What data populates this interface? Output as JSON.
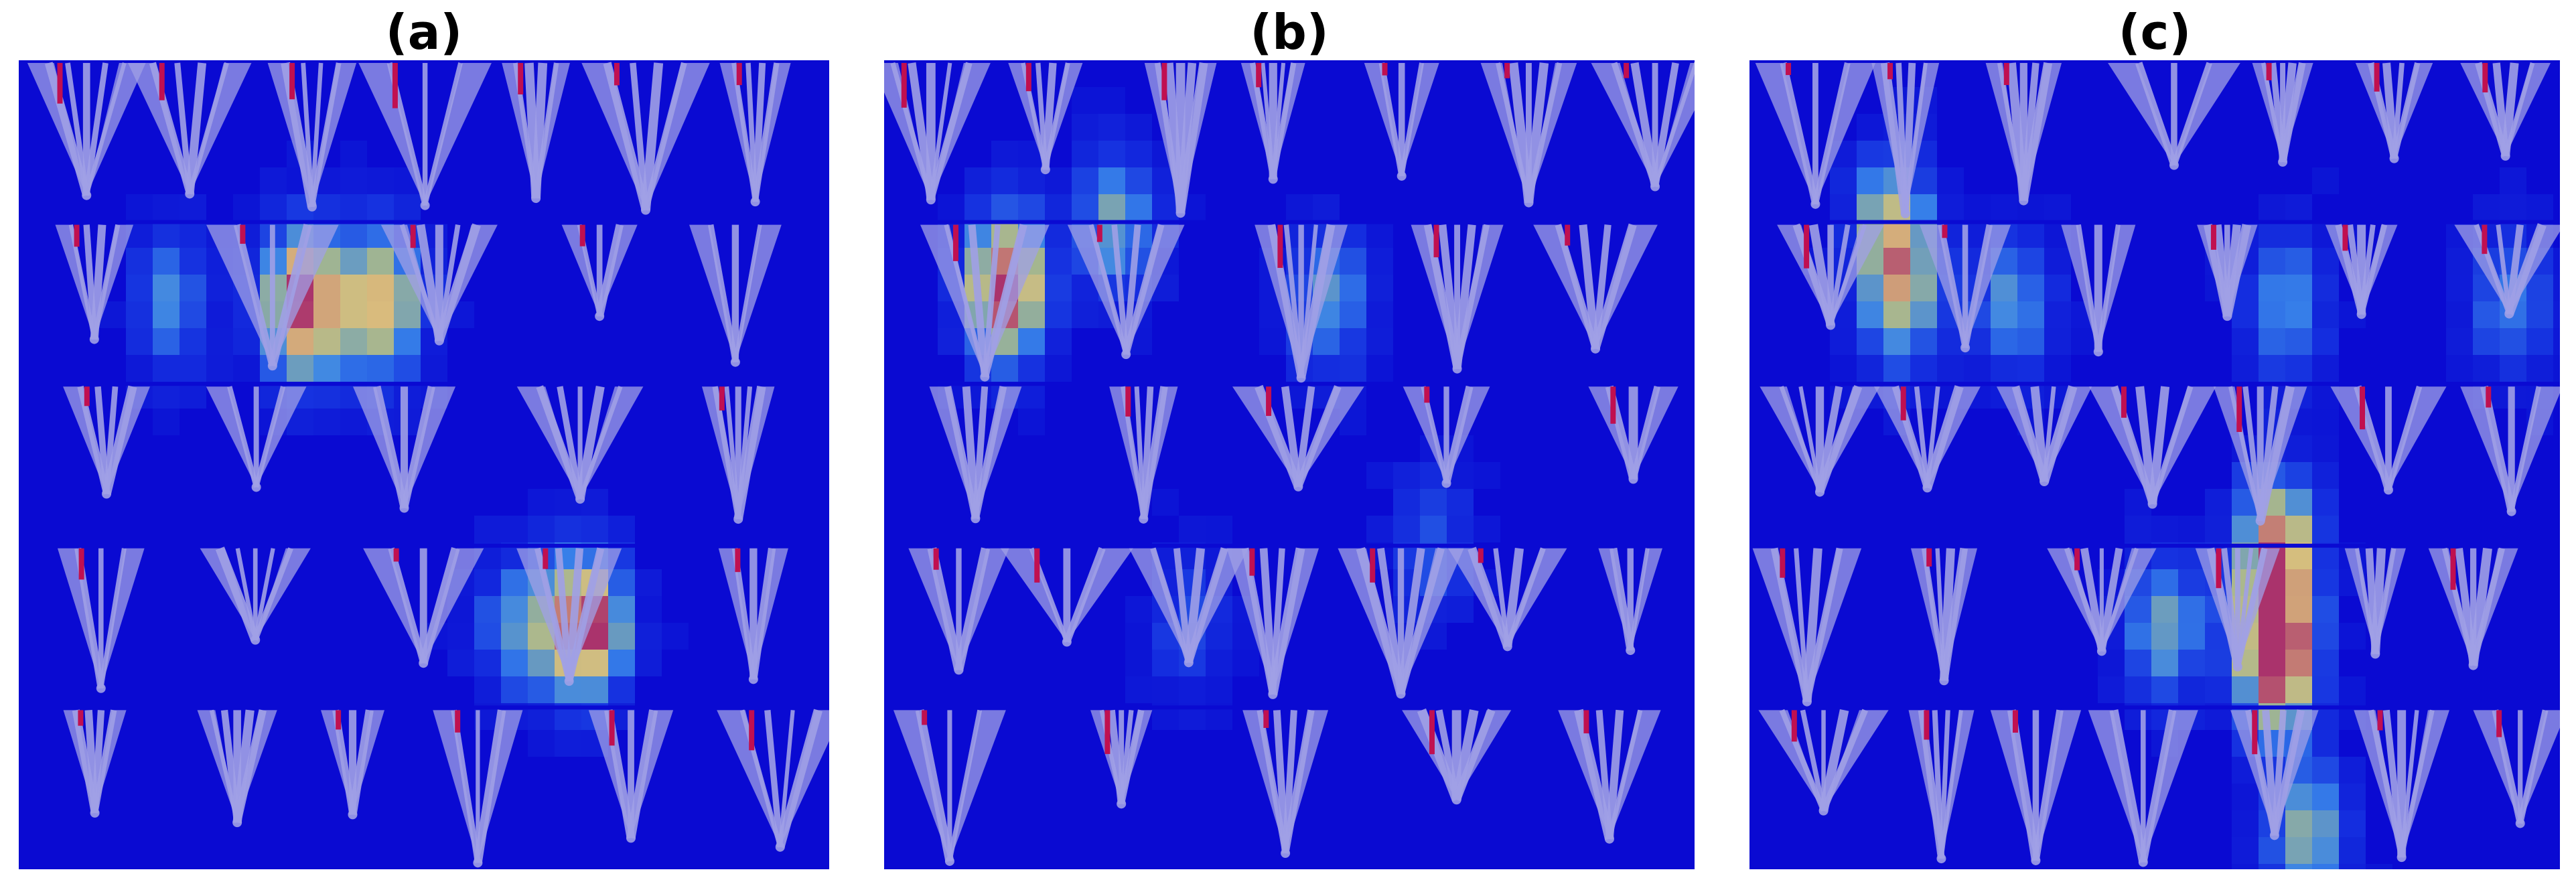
{
  "panels": [
    {
      "label": "(a)",
      "hotspots": [
        {
          "row": 1,
          "col": 2.3,
          "intensity": 1.0
        },
        {
          "row": 1,
          "col": 3.1,
          "intensity": 0.8
        },
        {
          "row": 3,
          "col": 5.1,
          "intensity": 1.0
        },
        {
          "row": 1,
          "col": 1.0,
          "intensity": 0.45
        },
        {
          "row": 3,
          "col": 4.4,
          "intensity": 0.45
        }
      ]
    },
    {
      "label": "(b)",
      "hotspots": [
        {
          "row": 0.9,
          "col": 0.7,
          "intensity": 1.0
        },
        {
          "row": 0.5,
          "col": 1.8,
          "intensity": 0.55
        },
        {
          "row": 1,
          "col": 3.9,
          "intensity": 0.5
        },
        {
          "row": 2.5,
          "col": 4.9,
          "intensity": 0.35
        },
        {
          "row": 3,
          "col": 2.5,
          "intensity": 0.3
        }
      ]
    },
    {
      "label": "(c)",
      "hotspots": [
        {
          "row": 0.5,
          "col": 0.9,
          "intensity": 0.6
        },
        {
          "row": 1,
          "col": 1.0,
          "intensity": 0.55
        },
        {
          "row": 1,
          "col": 2.1,
          "intensity": 0.5
        },
        {
          "row": 1,
          "col": 4.8,
          "intensity": 0.5
        },
        {
          "row": 2.5,
          "col": 4.7,
          "intensity": 0.85
        },
        {
          "row": 3.2,
          "col": 4.7,
          "intensity": 1.0
        },
        {
          "row": 3,
          "col": 3.6,
          "intensity": 0.55
        },
        {
          "row": 4.3,
          "col": 5.0,
          "intensity": 0.6
        },
        {
          "row": 1,
          "col": 7.0,
          "intensity": 0.45
        }
      ]
    }
  ],
  "colors": {
    "background": "#0a0ad2",
    "shape": "#a0a0e6",
    "shape_tip": "#c01050",
    "hot": "#ffff60"
  }
}
